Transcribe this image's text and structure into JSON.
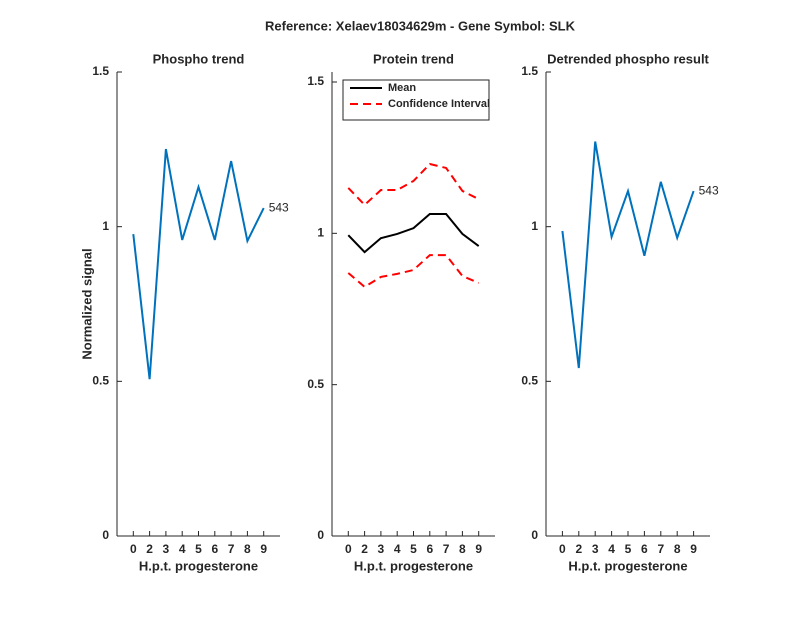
{
  "title": "Reference:  Xelaev18034629m - Gene Symbol:  SLK",
  "chart_data": [
    {
      "type": "line",
      "title": "Phospho trend",
      "xlabel": "H.p.t. progesterone",
      "ylabel": "Normalized signal",
      "categories": [
        "0",
        "2",
        "3",
        "4",
        "5",
        "6",
        "7",
        "8",
        "9"
      ],
      "series": [
        {
          "color": "#0072bd",
          "values": [
            0.976,
            0.507,
            1.251,
            0.957,
            1.128,
            0.957,
            1.212,
            0.954,
            1.06
          ]
        }
      ],
      "annotation": "543",
      "ylim": [
        0,
        1.5
      ],
      "yticks": [
        0,
        0.5,
        1,
        1.5
      ]
    },
    {
      "type": "line",
      "title": "Protein trend",
      "xlabel": "H.p.t. progesterone",
      "categories": [
        "0",
        "2",
        "3",
        "4",
        "5",
        "6",
        "7",
        "8",
        "9"
      ],
      "series": [
        {
          "name": "Mean",
          "color": "#000000",
          "style": "solid",
          "values": [
            0.994,
            0.938,
            0.984,
            0.998,
            1.017,
            1.064,
            1.064,
            0.998,
            0.958
          ]
        },
        {
          "name": "Confidence Interval",
          "color": "#ff0000",
          "style": "dashed",
          "upper": [
            1.15,
            1.094,
            1.143,
            1.143,
            1.173,
            1.229,
            1.216,
            1.14,
            1.113
          ],
          "lower": [
            0.869,
            0.823,
            0.856,
            0.866,
            0.879,
            0.928,
            0.928,
            0.859,
            0.836
          ]
        }
      ],
      "legend": "northwest",
      "ylim": [
        0,
        1.533
      ],
      "yticks": [
        0,
        0.5,
        1,
        1.5
      ]
    },
    {
      "type": "line",
      "title": "Detrended phospho result",
      "xlabel": "H.p.t. progesterone",
      "categories": [
        "0",
        "2",
        "3",
        "4",
        "5",
        "6",
        "7",
        "8",
        "9"
      ],
      "series": [
        {
          "color": "#0072bd",
          "values": [
            0.986,
            0.543,
            1.275,
            0.967,
            1.115,
            0.906,
            1.145,
            0.964,
            1.115
          ]
        }
      ],
      "annotation": "543",
      "ylim": [
        0,
        1.5
      ],
      "yticks": [
        0,
        0.5,
        1,
        1.5
      ]
    }
  ]
}
